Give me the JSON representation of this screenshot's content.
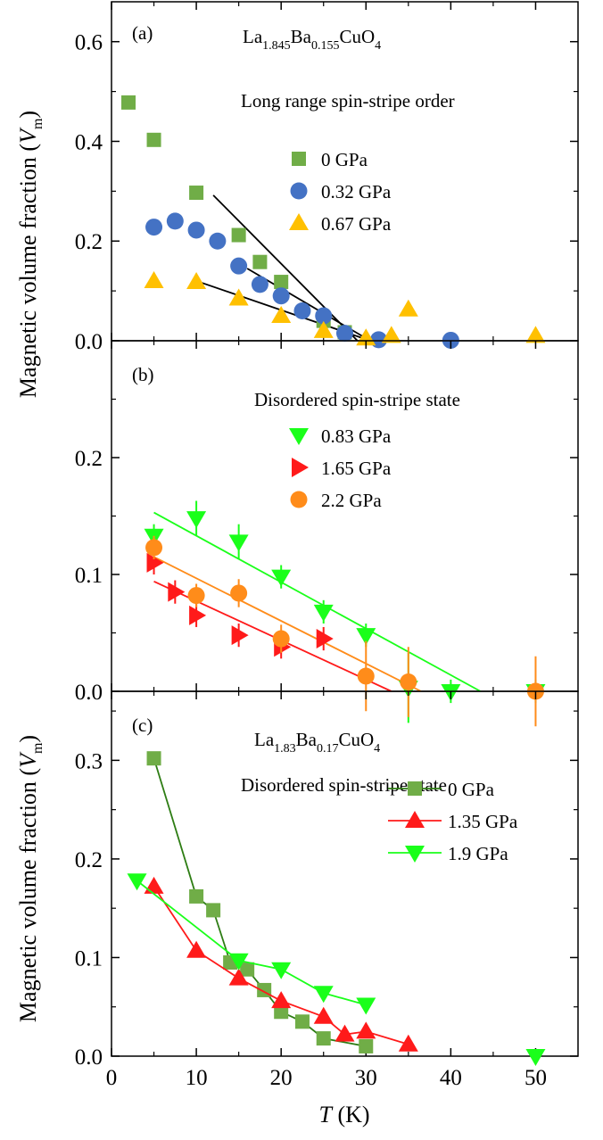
{
  "colors": {
    "green_square": "#70ad47",
    "blue_circle": "#4472c4",
    "yellow_triangle": "#ffc000",
    "bright_green": "#1aff1a",
    "red": "#ff1a1a",
    "orange": "#ff8c1a",
    "dark_green_line": "#2e7d14",
    "fit_line": "#000000"
  },
  "figure": {
    "x_axis_title_italic": "T",
    "x_axis_title_rest": " (K)"
  },
  "chart_data": [
    {
      "type": "scatter",
      "panel": "(a)",
      "title_formula": {
        "parts": [
          {
            "t": "La",
            "sub": false
          },
          {
            "t": "1.845",
            "sub": true
          },
          {
            "t": "Ba",
            "sub": false
          },
          {
            "t": "0.155",
            "sub": true
          },
          {
            "t": "CuO",
            "sub": false
          },
          {
            "t": "4",
            "sub": true
          }
        ]
      },
      "subtitle": "Long range spin-stripe order",
      "xlim": [
        0,
        55
      ],
      "ylim": [
        0,
        0.68
      ],
      "yticks": [
        0.0,
        0.2,
        0.4,
        0.6
      ],
      "ytick_labels": [
        "0.0",
        "0.2",
        "0.4",
        "0.6"
      ],
      "ylabel_main": "Magnetic volume fraction (",
      "ylabel_italic": "V",
      "ylabel_sub": "m",
      "ylabel_close": ")",
      "legend_position": "right",
      "series": [
        {
          "name": "0 GPa",
          "marker": "square",
          "color": "#70ad47",
          "x": [
            2,
            5,
            10,
            15,
            17.5,
            20,
            25,
            27.5
          ],
          "y": [
            0.478,
            0.403,
            0.297,
            0.212,
            0.158,
            0.118,
            0.04,
            0.017
          ]
        },
        {
          "name": "0.32 GPa",
          "marker": "circle",
          "color": "#4472c4",
          "x": [
            5,
            7.5,
            10,
            12.5,
            15,
            17.5,
            20,
            22.5,
            25,
            27.5,
            31.5,
            40
          ],
          "y": [
            0.228,
            0.24,
            0.222,
            0.2,
            0.15,
            0.113,
            0.09,
            0.06,
            0.05,
            0.015,
            0.002,
            0.001
          ]
        },
        {
          "name": "0.67 GPa",
          "marker": "triangle-up",
          "color": "#ffc000",
          "x": [
            5,
            10,
            15,
            20,
            25,
            30,
            33,
            35,
            50
          ],
          "y": [
            0.12,
            0.118,
            0.085,
            0.05,
            0.02,
            0.005,
            0.01,
            0.063,
            0.01
          ]
        }
      ],
      "fit_lines": [
        {
          "x": [
            12,
            29
          ],
          "y": [
            0.292,
            0.0
          ],
          "color": "#000000"
        },
        {
          "x": [
            16,
            30.5
          ],
          "y": [
            0.145,
            0.0
          ],
          "color": "#000000"
        },
        {
          "x": [
            10,
            30.5
          ],
          "y": [
            0.12,
            0.0
          ],
          "color": "#000000"
        }
      ]
    },
    {
      "type": "scatter",
      "panel": "(b)",
      "subtitle": "Disordered spin-stripe state",
      "xlim": [
        0,
        55
      ],
      "ylim": [
        0,
        0.3
      ],
      "yticks": [
        0.0,
        0.1,
        0.2
      ],
      "ytick_labels": [
        "0.0",
        "0.1",
        "0.2"
      ],
      "legend_position": "right",
      "series": [
        {
          "name": "0.83 GPa",
          "marker": "triangle-down",
          "color": "#1aff1a",
          "x": [
            5,
            10,
            15,
            20,
            25,
            30,
            35,
            40,
            50
          ],
          "y": [
            0.133,
            0.148,
            0.128,
            0.098,
            0.068,
            0.048,
            0.003,
            0.0,
            0.0
          ],
          "err": [
            0.01,
            0.015,
            0.015,
            0.01,
            0.01,
            0.01,
            0.03,
            0.01,
            0.01
          ]
        },
        {
          "name": "1.65 GPa",
          "marker": "triangle-right",
          "color": "#ff1a1a",
          "x": [
            5,
            7.5,
            10,
            15,
            20,
            25
          ],
          "y": [
            0.11,
            0.085,
            0.065,
            0.048,
            0.038,
            0.045
          ],
          "err": [
            0.01,
            0.01,
            0.01,
            0.01,
            0.01,
            0.01
          ]
        },
        {
          "name": "2.2 GPa",
          "marker": "circle",
          "color": "#ff8c1a",
          "x": [
            5,
            10,
            15,
            20,
            30,
            35,
            50
          ],
          "y": [
            0.123,
            0.082,
            0.084,
            0.045,
            0.013,
            0.008,
            0.0
          ],
          "err": [
            0.01,
            0.01,
            0.012,
            0.012,
            0.03,
            0.03,
            0.03
          ]
        }
      ],
      "fit_lines": [
        {
          "x": [
            5,
            43.5
          ],
          "y": [
            0.153,
            0.0
          ],
          "color": "#1aff1a"
        },
        {
          "x": [
            5,
            36.5
          ],
          "y": [
            0.115,
            0.0
          ],
          "color": "#ff8c1a"
        },
        {
          "x": [
            5,
            33
          ],
          "y": [
            0.094,
            0.0
          ],
          "color": "#ff1a1a"
        }
      ]
    },
    {
      "type": "line",
      "panel": "(c)",
      "title_formula": {
        "parts": [
          {
            "t": "La",
            "sub": false
          },
          {
            "t": "1.83",
            "sub": true
          },
          {
            "t": "Ba",
            "sub": false
          },
          {
            "t": "0.17",
            "sub": true
          },
          {
            "t": "CuO",
            "sub": false
          },
          {
            "t": "4",
            "sub": true
          }
        ]
      },
      "subtitle": "Disordered spin-stripe state",
      "xlim": [
        0,
        55
      ],
      "ylim": [
        0,
        0.37
      ],
      "yticks": [
        0.0,
        0.1,
        0.2,
        0.3
      ],
      "ytick_labels": [
        "0.0",
        "0.1",
        "0.2",
        "0.3"
      ],
      "xticks": [
        0,
        10,
        20,
        30,
        40,
        50
      ],
      "xtick_labels": [
        "0",
        "10",
        "20",
        "30",
        "40",
        "50"
      ],
      "ylabel_main": "Magnetic volume fraction (",
      "ylabel_italic": "V",
      "ylabel_sub": "m",
      "ylabel_close": ")",
      "legend_position": "right",
      "series": [
        {
          "name": "0 GPa",
          "marker": "square",
          "color": "#70ad47",
          "line_color": "#2e7d14",
          "x": [
            5,
            10,
            12,
            14,
            16,
            18,
            20,
            22.5,
            25,
            30
          ],
          "y": [
            0.302,
            0.162,
            0.148,
            0.095,
            0.088,
            0.067,
            0.045,
            0.035,
            0.018,
            0.01
          ]
        },
        {
          "name": "1.35 GPa",
          "marker": "triangle-up",
          "color": "#ff1a1a",
          "line_color": "#ff1a1a",
          "x": [
            5,
            10,
            15,
            20,
            25,
            27.5,
            30,
            35
          ],
          "y": [
            0.172,
            0.107,
            0.079,
            0.056,
            0.04,
            0.022,
            0.025,
            0.012
          ]
        },
        {
          "name": "1.9 GPa",
          "marker": "triangle-down",
          "color": "#1aff1a",
          "line_color": "#1aff1a",
          "x": [
            3,
            15,
            20,
            25,
            30
          ],
          "y": [
            0.178,
            0.097,
            0.088,
            0.064,
            0.052
          ]
        },
        {
          "name": "",
          "marker": "triangle-down",
          "color": "#1aff1a",
          "line_color": "none",
          "x": [
            50
          ],
          "y": [
            0.0
          ]
        }
      ]
    }
  ]
}
